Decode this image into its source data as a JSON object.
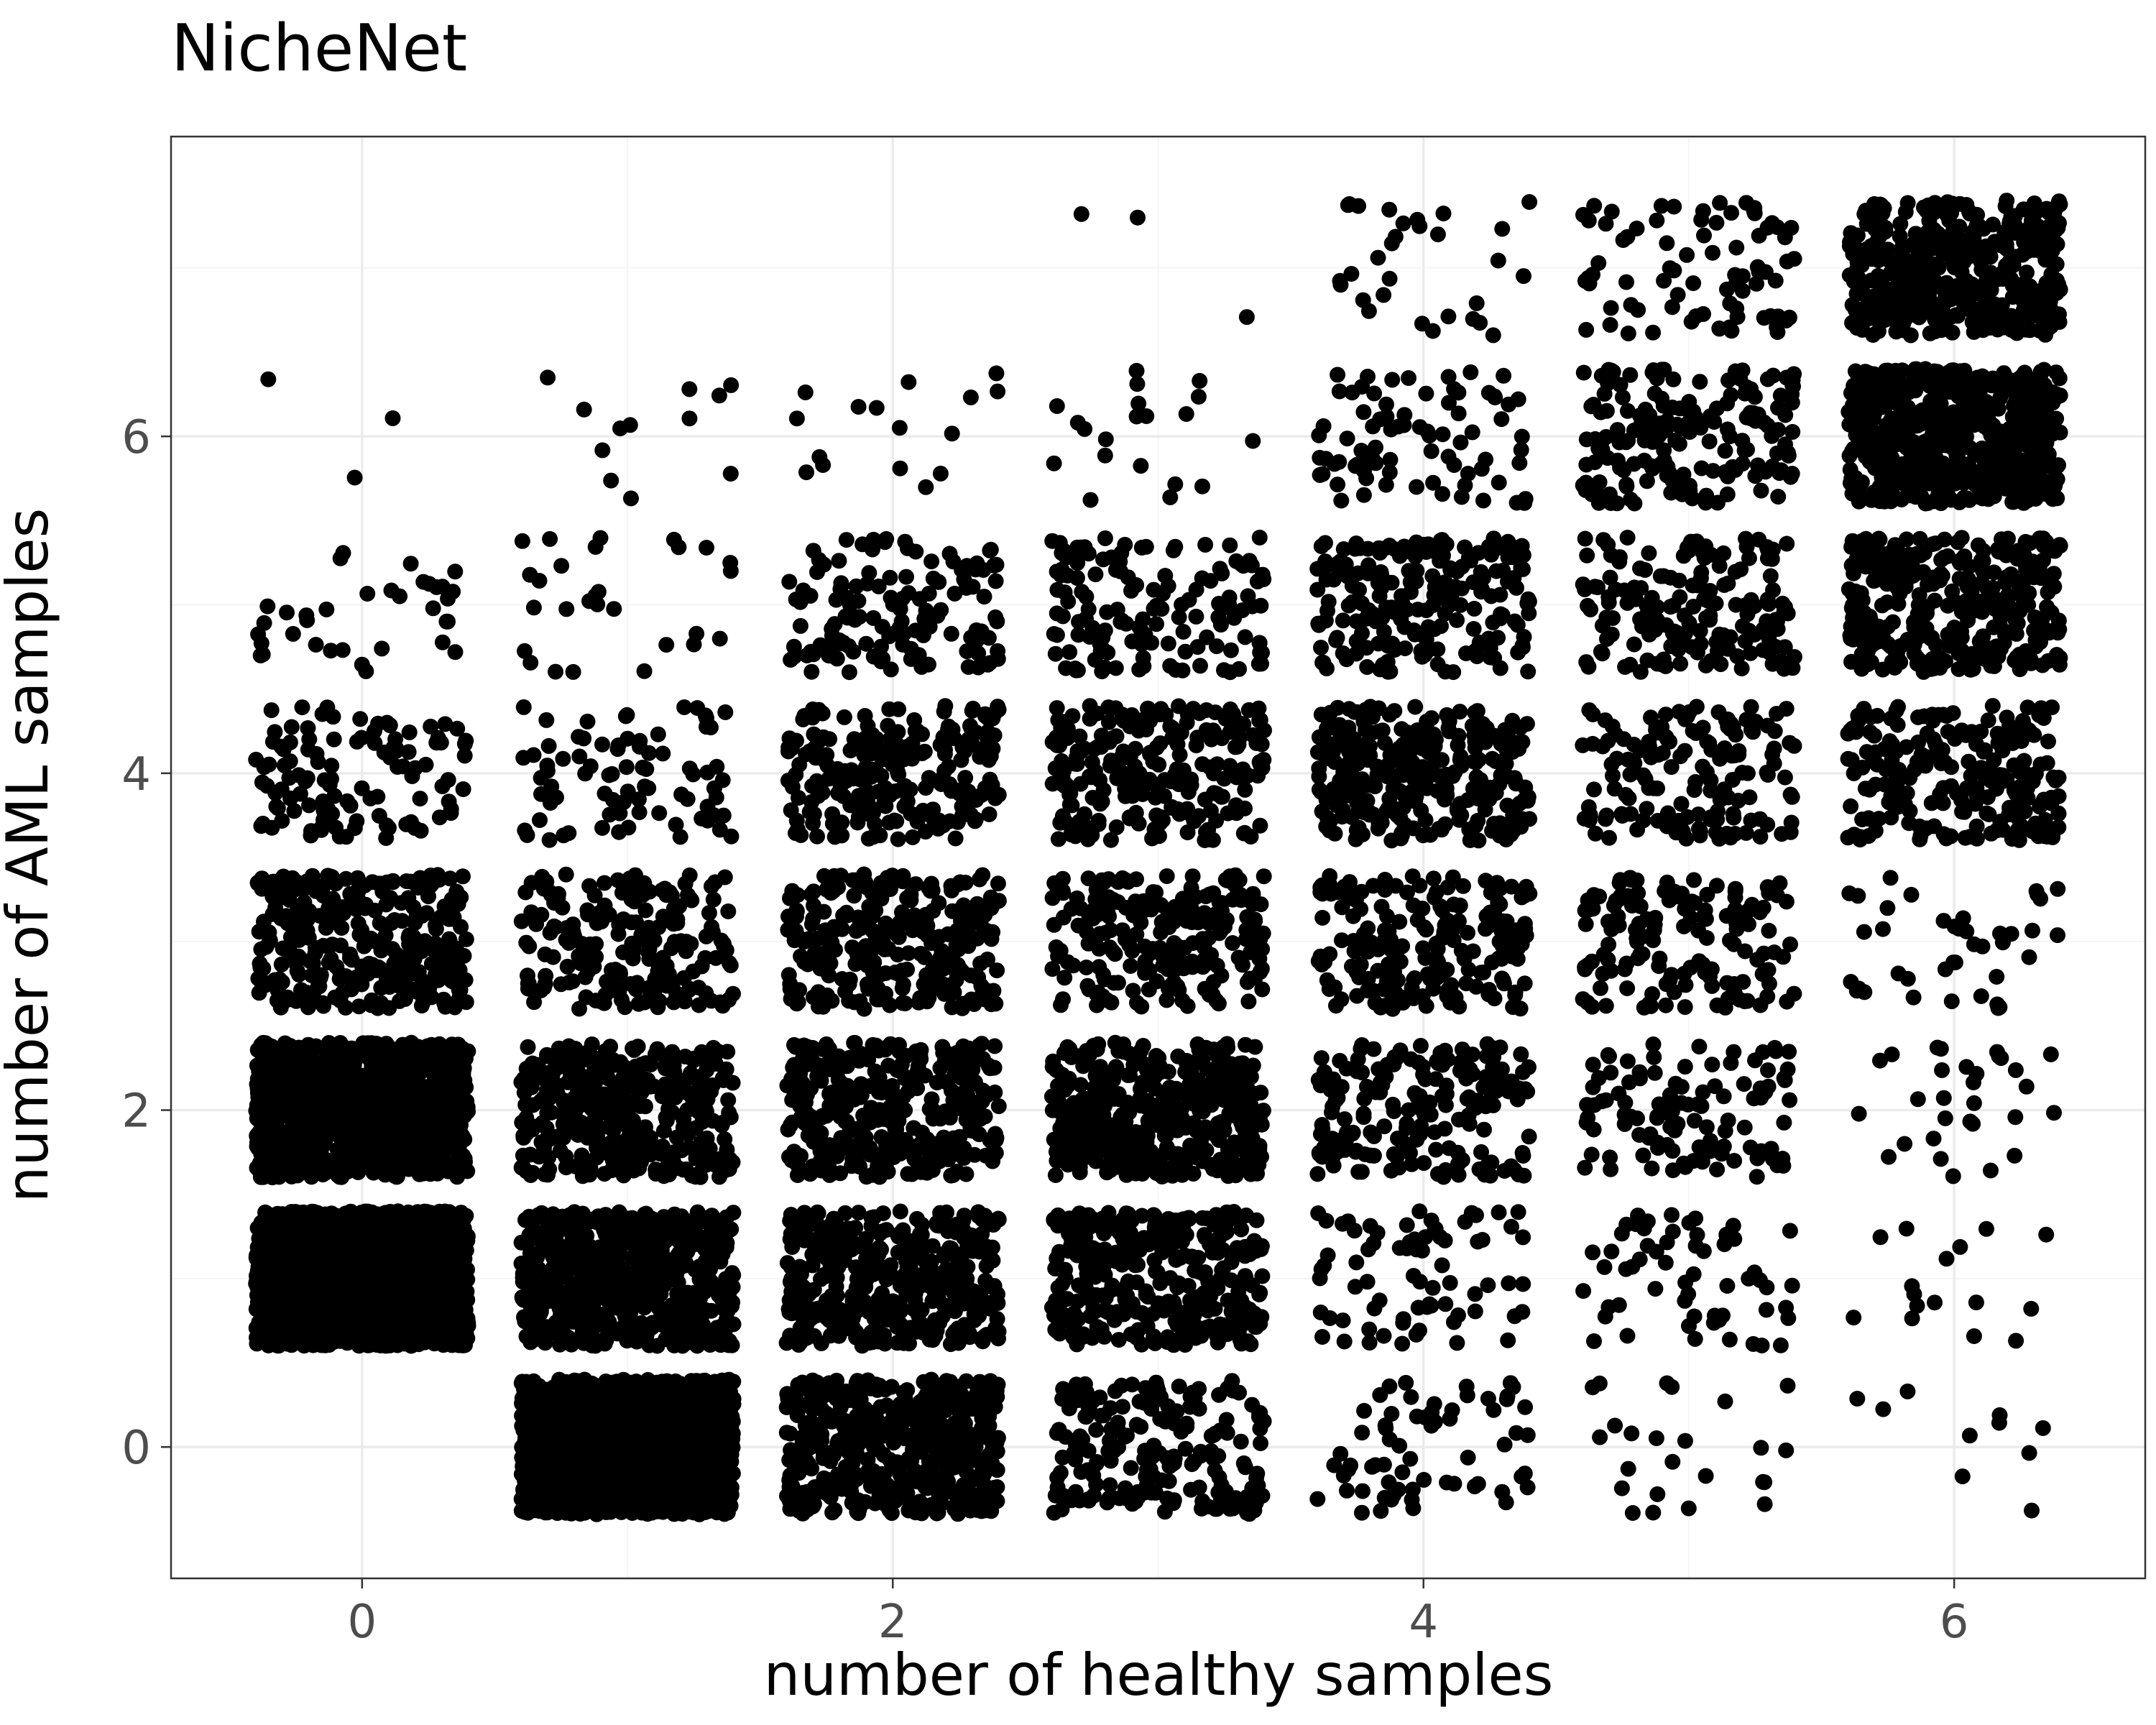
{
  "chart_data": {
    "type": "scatter",
    "title": "NicheNet",
    "xlabel": "number of healthy samples",
    "ylabel": "number of AML samples",
    "xlim": [
      -0.72,
      6.72
    ],
    "ylim": [
      -0.78,
      7.78
    ],
    "x_ticks": [
      0,
      2,
      4,
      6
    ],
    "y_ticks": [
      0,
      2,
      4,
      6
    ],
    "x_tick_labels": [
      "0",
      "2",
      "4",
      "6"
    ],
    "y_tick_labels": [
      "0",
      "2",
      "4",
      "6"
    ],
    "x_minor_ticks": [
      1,
      3,
      5
    ],
    "y_minor_ticks": [
      1,
      3,
      5,
      7
    ],
    "grid": true,
    "jitter": 0.4,
    "point_color": "#000000",
    "series": [
      {
        "x": [
          0,
          0,
          0,
          0,
          0,
          0,
          0,
          1,
          1,
          1,
          1,
          1,
          1,
          1,
          1,
          2,
          2,
          2,
          2,
          2,
          2,
          2,
          2,
          3,
          3,
          3,
          3,
          3,
          3,
          3,
          3,
          4,
          4,
          4,
          4,
          4,
          4,
          4,
          4,
          5,
          5,
          5,
          5,
          5,
          5,
          5,
          5,
          6,
          6,
          6,
          6,
          6,
          6,
          6,
          6
        ],
        "y": [
          1,
          2,
          3,
          4,
          5,
          6,
          7,
          0,
          1,
          2,
          3,
          4,
          5,
          6,
          7,
          0,
          1,
          2,
          3,
          4,
          5,
          6,
          7,
          0,
          1,
          2,
          3,
          4,
          5,
          6,
          7,
          0,
          1,
          2,
          3,
          4,
          5,
          6,
          7,
          0,
          1,
          2,
          3,
          4,
          5,
          6,
          7,
          0,
          1,
          2,
          3,
          4,
          5,
          6,
          7
        ],
        "count": [
          2000,
          900,
          300,
          110,
          35,
          3,
          0,
          1500,
          600,
          350,
          200,
          80,
          28,
          12,
          0,
          450,
          380,
          350,
          270,
          230,
          130,
          16,
          0,
          200,
          330,
          420,
          220,
          240,
          140,
          20,
          3,
          65,
          75,
          180,
          200,
          290,
          210,
          80,
          30,
          24,
          60,
          110,
          140,
          150,
          170,
          180,
          80,
          10,
          16,
          30,
          40,
          220,
          330,
          600,
          420
        ]
      }
    ]
  }
}
